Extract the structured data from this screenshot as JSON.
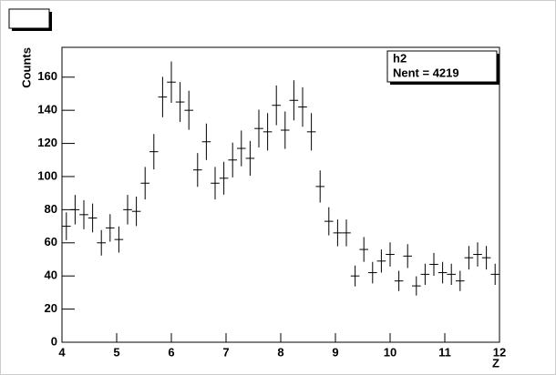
{
  "chart_data": {
    "type": "histogram",
    "stats_title": "h2",
    "stats_text": "Nent = 4219",
    "xlabel": "Z",
    "ylabel": "Counts",
    "bins": [
      4,
      4.16,
      4.32,
      4.48,
      4.64,
      4.8,
      4.96,
      5.12,
      5.28,
      5.44,
      5.6,
      5.76,
      5.92,
      6.08,
      6.24,
      6.4,
      6.56,
      6.72,
      6.88,
      7.04,
      7.2,
      7.36,
      7.52,
      7.68,
      7.84,
      8,
      8.16,
      8.32,
      8.48,
      8.64,
      8.8,
      8.96,
      9.12,
      9.28,
      9.44,
      9.6,
      9.76,
      9.92,
      10.08,
      10.24,
      10.4,
      10.56,
      10.72,
      10.88,
      11.04,
      11.2,
      11.36,
      11.52,
      11.68,
      11.84,
      12
    ],
    "values": [
      70,
      80,
      77,
      75,
      60,
      69,
      62,
      80,
      79,
      96,
      115,
      148,
      157,
      145,
      140,
      104,
      121,
      96,
      99,
      110,
      117,
      111,
      129,
      127,
      143,
      128,
      146,
      142,
      127,
      94,
      73,
      66,
      66,
      40,
      56,
      42,
      49,
      53,
      37,
      52,
      34,
      41,
      47,
      42,
      41,
      37,
      51,
      53,
      51,
      41
    ],
    "errors": [
      8.4,
      8.9,
      8.8,
      8.7,
      7.7,
      8.3,
      7.9,
      8.9,
      8.9,
      9.8,
      10.7,
      12.2,
      12.5,
      12.0,
      11.8,
      10.2,
      11,
      9.8,
      9.9,
      10.5,
      10.8,
      10.5,
      11.4,
      11.3,
      12.0,
      11.3,
      12.1,
      11.9,
      11.3,
      9.7,
      8.5,
      8.1,
      8.1,
      6.3,
      7.5,
      6.5,
      7,
      7.3,
      6.1,
      7.2,
      5.8,
      6.4,
      6.9,
      6.5,
      6.4,
      6.1,
      7.1,
      7.3,
      7.1,
      6.4
    ],
    "color": "#000000",
    "xlim": [
      4,
      12
    ],
    "xticks": [
      4,
      5,
      6,
      7,
      8,
      9,
      10,
      11,
      12
    ],
    "ylim": [
      0,
      178
    ],
    "yticks": [
      0,
      20,
      40,
      60,
      80,
      100,
      120,
      140,
      160
    ]
  }
}
